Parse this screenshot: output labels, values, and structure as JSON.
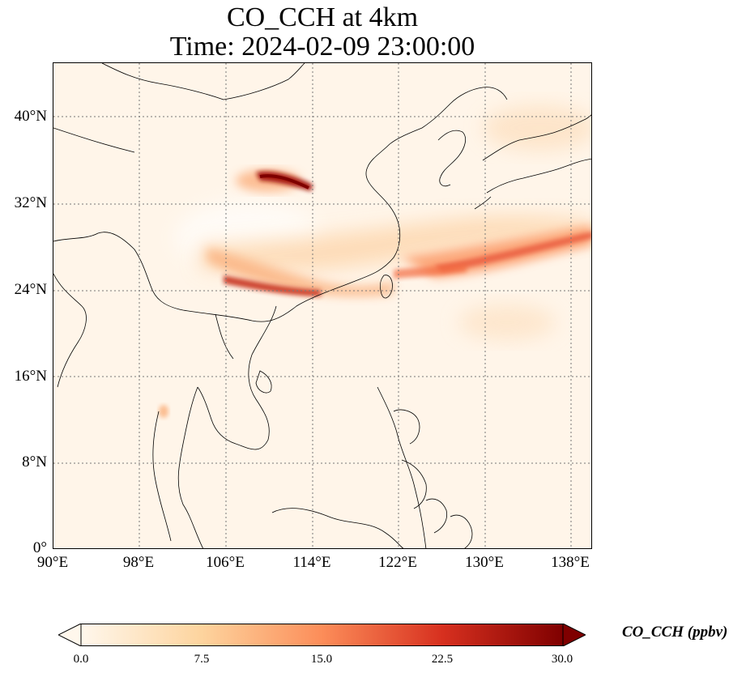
{
  "title_line1": "CO_CCH at 4km",
  "title_line2": "Time: 2024-02-09 23:00:00",
  "map": {
    "extent": {
      "lon": [
        90,
        140
      ],
      "lat": [
        0,
        45
      ]
    },
    "lat_ticks": [
      "40°N",
      "32°N",
      "24°N",
      "16°N",
      "8°N",
      "0°"
    ],
    "lon_ticks": [
      "90°E",
      "98°E",
      "106°E",
      "114°E",
      "122°E",
      "130°E",
      "138°E"
    ],
    "gridlines": "dotted",
    "colormap": "OrRd"
  },
  "colorbar": {
    "label": "CO_CCH (ppbv)",
    "ticks": [
      "0.0",
      "7.5",
      "15.0",
      "22.5",
      "30.0"
    ],
    "range": [
      0,
      30
    ],
    "colors": [
      "#fff7ec",
      "#fdd49e",
      "#fc8d59",
      "#d7301f",
      "#7f0000"
    ]
  }
}
